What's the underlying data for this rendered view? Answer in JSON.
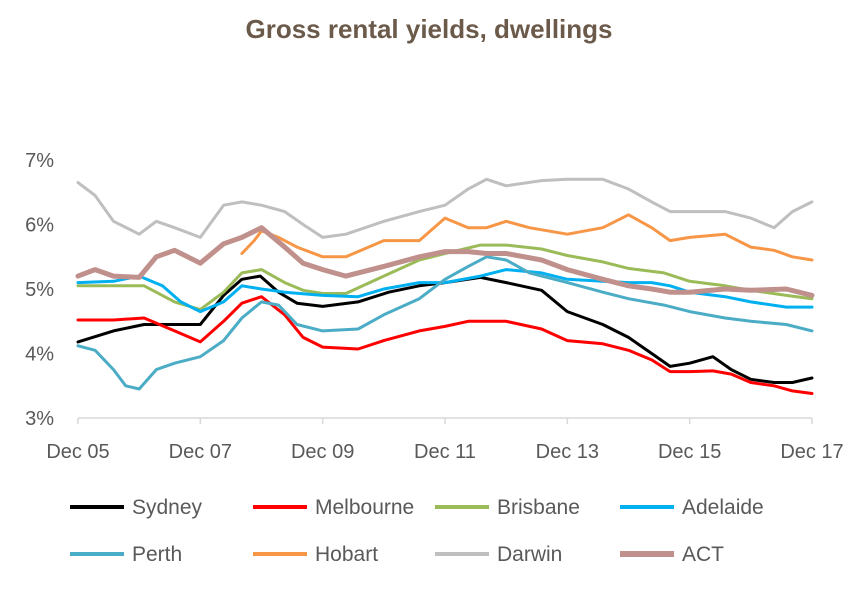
{
  "chart_data": {
    "type": "line",
    "title": "Gross rental yields, dwellings",
    "xlabel": "",
    "ylabel": "",
    "x_ticks": [
      "Dec 05",
      "Dec 07",
      "Dec 09",
      "Dec 11",
      "Dec 13",
      "Dec 15",
      "Dec 17"
    ],
    "y_ticks": [
      "3%",
      "4%",
      "5%",
      "6%",
      "7%"
    ],
    "xlim": [
      2005.92,
      2017.92
    ],
    "ylim": [
      3,
      7
    ],
    "grid": false,
    "legend_position": "bottom",
    "series": [
      {
        "name": "Sydney",
        "color": "#000000",
        "width": 3,
        "points": [
          [
            2005.92,
            4.18
          ],
          [
            2006.5,
            4.35
          ],
          [
            2007.0,
            4.45
          ],
          [
            2007.5,
            4.45
          ],
          [
            2007.92,
            4.45
          ],
          [
            2008.3,
            4.9
          ],
          [
            2008.6,
            5.15
          ],
          [
            2008.9,
            5.2
          ],
          [
            2009.2,
            4.95
          ],
          [
            2009.5,
            4.78
          ],
          [
            2009.92,
            4.73
          ],
          [
            2010.5,
            4.8
          ],
          [
            2011.0,
            4.95
          ],
          [
            2011.5,
            5.05
          ],
          [
            2011.92,
            5.1
          ],
          [
            2012.5,
            5.18
          ],
          [
            2012.92,
            5.1
          ],
          [
            2013.5,
            4.98
          ],
          [
            2013.92,
            4.65
          ],
          [
            2014.5,
            4.45
          ],
          [
            2014.92,
            4.25
          ],
          [
            2015.3,
            4.0
          ],
          [
            2015.6,
            3.8
          ],
          [
            2015.92,
            3.85
          ],
          [
            2016.3,
            3.95
          ],
          [
            2016.6,
            3.75
          ],
          [
            2016.92,
            3.6
          ],
          [
            2017.3,
            3.55
          ],
          [
            2017.6,
            3.55
          ],
          [
            2017.92,
            3.62
          ]
        ]
      },
      {
        "name": "Melbourne",
        "color": "#ff0000",
        "width": 3,
        "points": [
          [
            2005.92,
            4.52
          ],
          [
            2006.5,
            4.52
          ],
          [
            2007.0,
            4.55
          ],
          [
            2007.5,
            4.35
          ],
          [
            2007.92,
            4.18
          ],
          [
            2008.3,
            4.5
          ],
          [
            2008.6,
            4.78
          ],
          [
            2008.92,
            4.88
          ],
          [
            2009.3,
            4.6
          ],
          [
            2009.6,
            4.25
          ],
          [
            2009.92,
            4.1
          ],
          [
            2010.5,
            4.07
          ],
          [
            2010.92,
            4.2
          ],
          [
            2011.5,
            4.35
          ],
          [
            2011.92,
            4.42
          ],
          [
            2012.3,
            4.5
          ],
          [
            2012.92,
            4.5
          ],
          [
            2013.5,
            4.38
          ],
          [
            2013.92,
            4.2
          ],
          [
            2014.5,
            4.15
          ],
          [
            2014.92,
            4.05
          ],
          [
            2015.3,
            3.9
          ],
          [
            2015.6,
            3.72
          ],
          [
            2015.92,
            3.72
          ],
          [
            2016.3,
            3.73
          ],
          [
            2016.6,
            3.68
          ],
          [
            2016.92,
            3.55
          ],
          [
            2017.3,
            3.5
          ],
          [
            2017.6,
            3.42
          ],
          [
            2017.92,
            3.38
          ]
        ]
      },
      {
        "name": "Brisbane",
        "color": "#9bbb59",
        "width": 3,
        "points": [
          [
            2005.92,
            5.05
          ],
          [
            2006.5,
            5.05
          ],
          [
            2007.0,
            5.05
          ],
          [
            2007.5,
            4.8
          ],
          [
            2007.92,
            4.68
          ],
          [
            2008.3,
            4.95
          ],
          [
            2008.6,
            5.25
          ],
          [
            2008.92,
            5.3
          ],
          [
            2009.3,
            5.1
          ],
          [
            2009.6,
            4.98
          ],
          [
            2009.92,
            4.93
          ],
          [
            2010.3,
            4.93
          ],
          [
            2010.92,
            5.2
          ],
          [
            2011.5,
            5.45
          ],
          [
            2011.92,
            5.55
          ],
          [
            2012.5,
            5.68
          ],
          [
            2012.92,
            5.68
          ],
          [
            2013.5,
            5.62
          ],
          [
            2013.92,
            5.52
          ],
          [
            2014.5,
            5.42
          ],
          [
            2014.92,
            5.32
          ],
          [
            2015.5,
            5.25
          ],
          [
            2015.92,
            5.12
          ],
          [
            2016.5,
            5.05
          ],
          [
            2016.92,
            4.98
          ],
          [
            2017.5,
            4.9
          ],
          [
            2017.92,
            4.85
          ]
        ]
      },
      {
        "name": "Adelaide",
        "color": "#00b0f0",
        "width": 3,
        "points": [
          [
            2005.92,
            5.1
          ],
          [
            2006.5,
            5.12
          ],
          [
            2006.92,
            5.2
          ],
          [
            2007.3,
            5.05
          ],
          [
            2007.6,
            4.8
          ],
          [
            2007.92,
            4.65
          ],
          [
            2008.3,
            4.8
          ],
          [
            2008.6,
            5.05
          ],
          [
            2008.92,
            5.0
          ],
          [
            2009.3,
            4.95
          ],
          [
            2009.92,
            4.9
          ],
          [
            2010.5,
            4.88
          ],
          [
            2010.92,
            5.0
          ],
          [
            2011.5,
            5.1
          ],
          [
            2011.92,
            5.1
          ],
          [
            2012.5,
            5.2
          ],
          [
            2012.92,
            5.3
          ],
          [
            2013.5,
            5.25
          ],
          [
            2013.92,
            5.15
          ],
          [
            2014.5,
            5.12
          ],
          [
            2014.92,
            5.1
          ],
          [
            2015.3,
            5.1
          ],
          [
            2015.6,
            5.05
          ],
          [
            2015.92,
            4.95
          ],
          [
            2016.5,
            4.88
          ],
          [
            2016.92,
            4.8
          ],
          [
            2017.5,
            4.72
          ],
          [
            2017.92,
            4.72
          ]
        ]
      },
      {
        "name": "Perth",
        "color": "#4bacc6",
        "width": 3,
        "points": [
          [
            2005.92,
            4.12
          ],
          [
            2006.2,
            4.05
          ],
          [
            2006.5,
            3.75
          ],
          [
            2006.7,
            3.5
          ],
          [
            2006.92,
            3.45
          ],
          [
            2007.2,
            3.75
          ],
          [
            2007.5,
            3.85
          ],
          [
            2007.92,
            3.95
          ],
          [
            2008.3,
            4.2
          ],
          [
            2008.6,
            4.55
          ],
          [
            2008.92,
            4.8
          ],
          [
            2009.2,
            4.75
          ],
          [
            2009.5,
            4.45
          ],
          [
            2009.92,
            4.35
          ],
          [
            2010.5,
            4.38
          ],
          [
            2010.92,
            4.6
          ],
          [
            2011.5,
            4.85
          ],
          [
            2011.92,
            5.15
          ],
          [
            2012.3,
            5.35
          ],
          [
            2012.6,
            5.5
          ],
          [
            2012.92,
            5.45
          ],
          [
            2013.3,
            5.25
          ],
          [
            2013.92,
            5.1
          ],
          [
            2014.5,
            4.95
          ],
          [
            2014.92,
            4.85
          ],
          [
            2015.5,
            4.75
          ],
          [
            2015.92,
            4.65
          ],
          [
            2016.5,
            4.55
          ],
          [
            2016.92,
            4.5
          ],
          [
            2017.5,
            4.45
          ],
          [
            2017.92,
            4.35
          ]
        ]
      },
      {
        "name": "Hobart",
        "color": "#f79646",
        "width": 3,
        "points": [
          [
            2008.6,
            5.55
          ],
          [
            2008.8,
            5.75
          ],
          [
            2008.92,
            5.9
          ],
          [
            2009.2,
            5.8
          ],
          [
            2009.5,
            5.65
          ],
          [
            2009.92,
            5.5
          ],
          [
            2010.3,
            5.5
          ],
          [
            2010.92,
            5.75
          ],
          [
            2011.5,
            5.75
          ],
          [
            2011.92,
            6.1
          ],
          [
            2012.3,
            5.95
          ],
          [
            2012.6,
            5.95
          ],
          [
            2012.92,
            6.05
          ],
          [
            2013.3,
            5.95
          ],
          [
            2013.92,
            5.85
          ],
          [
            2014.5,
            5.95
          ],
          [
            2014.92,
            6.15
          ],
          [
            2015.3,
            5.95
          ],
          [
            2015.6,
            5.75
          ],
          [
            2015.92,
            5.8
          ],
          [
            2016.5,
            5.85
          ],
          [
            2016.92,
            5.65
          ],
          [
            2017.3,
            5.6
          ],
          [
            2017.6,
            5.5
          ],
          [
            2017.92,
            5.45
          ]
        ]
      },
      {
        "name": "Darwin",
        "color": "#bfbfbf",
        "width": 3,
        "points": [
          [
            2005.92,
            6.65
          ],
          [
            2006.2,
            6.45
          ],
          [
            2006.5,
            6.05
          ],
          [
            2006.92,
            5.85
          ],
          [
            2007.2,
            6.05
          ],
          [
            2007.5,
            5.95
          ],
          [
            2007.92,
            5.8
          ],
          [
            2008.3,
            6.3
          ],
          [
            2008.6,
            6.35
          ],
          [
            2008.92,
            6.3
          ],
          [
            2009.3,
            6.2
          ],
          [
            2009.6,
            6.0
          ],
          [
            2009.92,
            5.8
          ],
          [
            2010.3,
            5.85
          ],
          [
            2010.92,
            6.05
          ],
          [
            2011.5,
            6.2
          ],
          [
            2011.92,
            6.3
          ],
          [
            2012.3,
            6.55
          ],
          [
            2012.6,
            6.7
          ],
          [
            2012.92,
            6.6
          ],
          [
            2013.5,
            6.68
          ],
          [
            2013.92,
            6.7
          ],
          [
            2014.5,
            6.7
          ],
          [
            2014.92,
            6.55
          ],
          [
            2015.3,
            6.35
          ],
          [
            2015.6,
            6.2
          ],
          [
            2015.92,
            6.2
          ],
          [
            2016.5,
            6.2
          ],
          [
            2016.92,
            6.1
          ],
          [
            2017.3,
            5.95
          ],
          [
            2017.6,
            6.2
          ],
          [
            2017.92,
            6.35
          ]
        ]
      },
      {
        "name": "ACT",
        "color": "#c0908c",
        "width": 5,
        "points": [
          [
            2005.92,
            5.2
          ],
          [
            2006.2,
            5.3
          ],
          [
            2006.5,
            5.2
          ],
          [
            2006.92,
            5.18
          ],
          [
            2007.2,
            5.5
          ],
          [
            2007.5,
            5.6
          ],
          [
            2007.92,
            5.4
          ],
          [
            2008.3,
            5.7
          ],
          [
            2008.6,
            5.8
          ],
          [
            2008.92,
            5.95
          ],
          [
            2009.3,
            5.65
          ],
          [
            2009.6,
            5.4
          ],
          [
            2009.92,
            5.3
          ],
          [
            2010.3,
            5.2
          ],
          [
            2010.92,
            5.35
          ],
          [
            2011.5,
            5.5
          ],
          [
            2011.92,
            5.58
          ],
          [
            2012.3,
            5.58
          ],
          [
            2012.6,
            5.55
          ],
          [
            2012.92,
            5.55
          ],
          [
            2013.5,
            5.45
          ],
          [
            2013.92,
            5.3
          ],
          [
            2014.5,
            5.15
          ],
          [
            2014.92,
            5.05
          ],
          [
            2015.3,
            5.0
          ],
          [
            2015.6,
            4.95
          ],
          [
            2015.92,
            4.95
          ],
          [
            2016.5,
            5.0
          ],
          [
            2016.92,
            4.98
          ],
          [
            2017.5,
            5.0
          ],
          [
            2017.92,
            4.9
          ]
        ]
      }
    ]
  }
}
